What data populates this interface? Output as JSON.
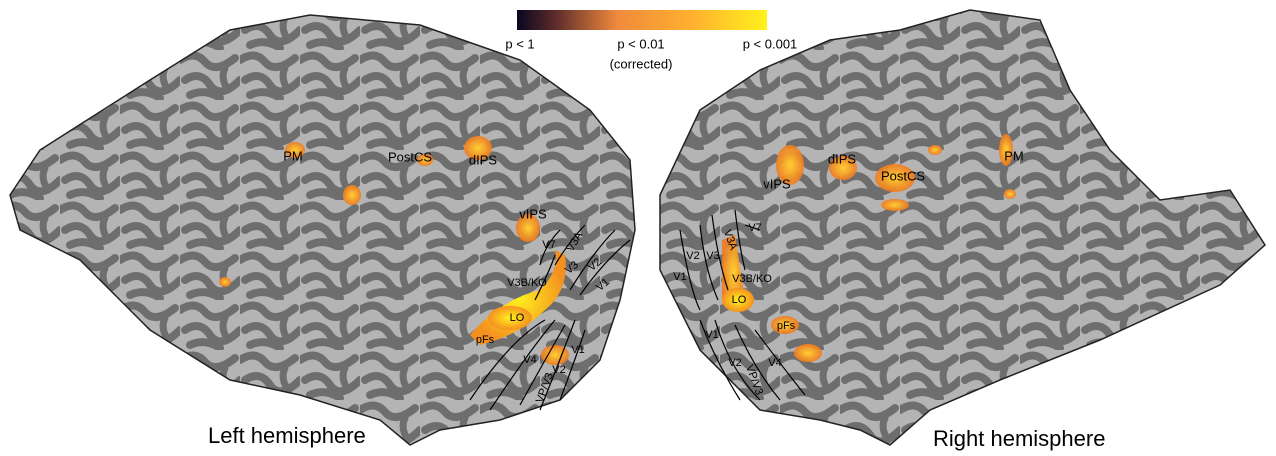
{
  "colorbar": {
    "labels": [
      "p < 1",
      "p < 0.01",
      "(corrected)",
      "p < 0.001"
    ]
  },
  "left_hemisphere": {
    "title": "Left hemisphere",
    "labels": [
      "PM",
      "PostCS",
      "dIPS",
      "vIPS",
      "V7",
      "V3A",
      "V3",
      "V2",
      "V1",
      "V3B/KO",
      "LO",
      "pFs",
      "V4",
      "V2",
      "V1",
      "VP/V3"
    ]
  },
  "right_hemisphere": {
    "title": "Right hemisphere",
    "labels": [
      "vIPS",
      "dIPS",
      "PostCS",
      "PM",
      "V7",
      "V3A",
      "V2",
      "V3",
      "V1",
      "V3B/KO",
      "LO",
      "pFs",
      "V1",
      "V2",
      "V4",
      "VP/V3"
    ]
  }
}
